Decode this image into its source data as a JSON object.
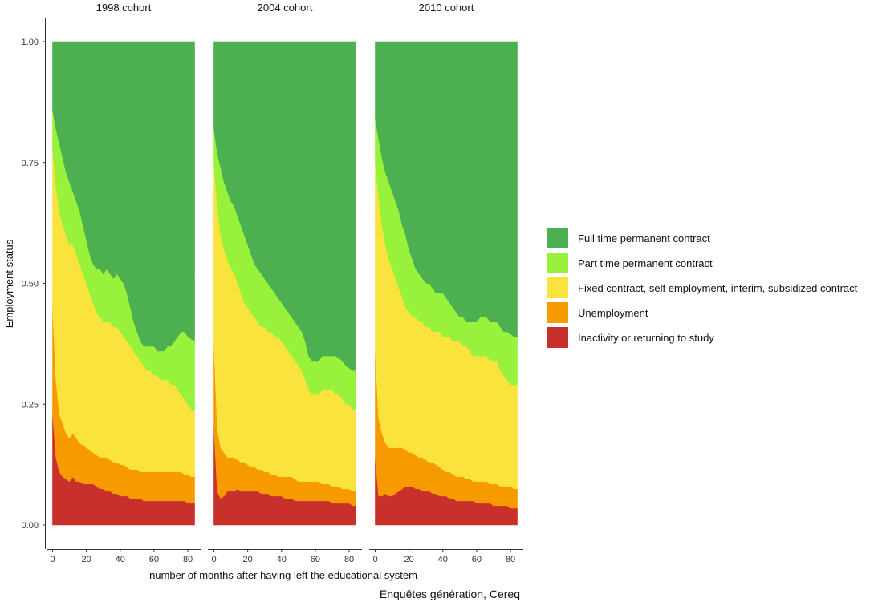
{
  "chart_data": {
    "type": "area",
    "stacked": true,
    "normalized": true,
    "ylabel": "Employment status",
    "xlabel": "number of months after having left the educational system",
    "caption": "Enquêtes génération, Cereq",
    "ylim": [
      0,
      1
    ],
    "xlim": [
      0,
      84
    ],
    "y_ticks": [
      "0.00",
      "0.25",
      "0.50",
      "0.75",
      "1.00"
    ],
    "y_tick_values": [
      0,
      0.25,
      0.5,
      0.75,
      1.0
    ],
    "x_ticks": [
      "0",
      "20",
      "40",
      "60",
      "80"
    ],
    "x_tick_values": [
      0,
      20,
      40,
      60,
      80
    ],
    "legend_position": "right",
    "grid": false,
    "x": [
      0,
      2,
      4,
      6,
      8,
      10,
      12,
      14,
      16,
      18,
      20,
      22,
      24,
      26,
      28,
      30,
      32,
      34,
      36,
      38,
      40,
      42,
      44,
      46,
      48,
      50,
      52,
      54,
      56,
      58,
      60,
      62,
      64,
      66,
      68,
      70,
      72,
      74,
      76,
      78,
      80,
      82,
      84
    ],
    "series": [
      {
        "name": "Inactivity or returning to study",
        "color": "#c8302b"
      },
      {
        "name": "Unemployment",
        "color": "#f79a00"
      },
      {
        "name": "Fixed contract, self employment, interim, subsidized contract",
        "color": "#fbe33d"
      },
      {
        "name": "Part time permanent contract",
        "color": "#98f23c"
      },
      {
        "name": "Full time permanent contract",
        "color": "#4caf50"
      }
    ],
    "panels": [
      {
        "title": "1998 cohort",
        "cumulative_upper_bounds": {
          "Inactivity or returning to study": [
            0.23,
            0.14,
            0.11,
            0.1,
            0.095,
            0.09,
            0.1,
            0.09,
            0.09,
            0.085,
            0.085,
            0.085,
            0.085,
            0.08,
            0.075,
            0.075,
            0.07,
            0.07,
            0.065,
            0.065,
            0.06,
            0.06,
            0.06,
            0.055,
            0.055,
            0.055,
            0.055,
            0.05,
            0.05,
            0.05,
            0.05,
            0.05,
            0.05,
            0.05,
            0.05,
            0.05,
            0.05,
            0.05,
            0.05,
            0.05,
            0.045,
            0.045,
            0.045
          ],
          "Unemployment": [
            0.45,
            0.3,
            0.23,
            0.21,
            0.19,
            0.18,
            0.19,
            0.18,
            0.17,
            0.165,
            0.16,
            0.155,
            0.15,
            0.145,
            0.14,
            0.14,
            0.14,
            0.135,
            0.13,
            0.13,
            0.125,
            0.125,
            0.12,
            0.115,
            0.115,
            0.115,
            0.11,
            0.11,
            0.11,
            0.11,
            0.11,
            0.11,
            0.11,
            0.11,
            0.11,
            0.11,
            0.11,
            0.11,
            0.11,
            0.105,
            0.105,
            0.1,
            0.1
          ],
          "Fixed contract, self employment, interim, subsidized contract": [
            0.78,
            0.7,
            0.65,
            0.62,
            0.6,
            0.58,
            0.58,
            0.56,
            0.54,
            0.52,
            0.5,
            0.48,
            0.46,
            0.44,
            0.43,
            0.42,
            0.42,
            0.42,
            0.41,
            0.41,
            0.4,
            0.39,
            0.38,
            0.37,
            0.36,
            0.35,
            0.34,
            0.33,
            0.32,
            0.32,
            0.31,
            0.31,
            0.3,
            0.3,
            0.3,
            0.29,
            0.29,
            0.28,
            0.27,
            0.26,
            0.25,
            0.24,
            0.235
          ],
          "Part time permanent contract": [
            0.86,
            0.82,
            0.79,
            0.76,
            0.73,
            0.71,
            0.69,
            0.67,
            0.65,
            0.62,
            0.59,
            0.56,
            0.54,
            0.53,
            0.53,
            0.52,
            0.53,
            0.52,
            0.51,
            0.52,
            0.51,
            0.5,
            0.48,
            0.45,
            0.42,
            0.4,
            0.38,
            0.37,
            0.37,
            0.37,
            0.37,
            0.36,
            0.36,
            0.36,
            0.37,
            0.37,
            0.38,
            0.39,
            0.4,
            0.4,
            0.39,
            0.385,
            0.38
          ],
          "Full time permanent contract": [
            1,
            1,
            1,
            1,
            1,
            1,
            1,
            1,
            1,
            1,
            1,
            1,
            1,
            1,
            1,
            1,
            1,
            1,
            1,
            1,
            1,
            1,
            1,
            1,
            1,
            1,
            1,
            1,
            1,
            1,
            1,
            1,
            1,
            1,
            1,
            1,
            1,
            1,
            1,
            1,
            1,
            1,
            1
          ]
        }
      },
      {
        "title": "2004 cohort",
        "cumulative_upper_bounds": {
          "Inactivity or returning to study": [
            0.2,
            0.07,
            0.055,
            0.06,
            0.07,
            0.07,
            0.07,
            0.075,
            0.07,
            0.07,
            0.07,
            0.07,
            0.07,
            0.07,
            0.065,
            0.065,
            0.065,
            0.06,
            0.06,
            0.06,
            0.06,
            0.055,
            0.055,
            0.055,
            0.05,
            0.05,
            0.05,
            0.05,
            0.05,
            0.05,
            0.05,
            0.05,
            0.05,
            0.05,
            0.05,
            0.045,
            0.045,
            0.045,
            0.045,
            0.045,
            0.045,
            0.04,
            0.04
          ],
          "Unemployment": [
            0.38,
            0.2,
            0.16,
            0.15,
            0.14,
            0.14,
            0.14,
            0.135,
            0.13,
            0.13,
            0.125,
            0.12,
            0.12,
            0.115,
            0.115,
            0.11,
            0.11,
            0.105,
            0.105,
            0.1,
            0.1,
            0.1,
            0.1,
            0.1,
            0.095,
            0.09,
            0.09,
            0.09,
            0.09,
            0.09,
            0.09,
            0.09,
            0.085,
            0.085,
            0.085,
            0.08,
            0.08,
            0.08,
            0.075,
            0.075,
            0.075,
            0.07,
            0.07
          ],
          "Fixed contract, self employment, interim, subsidized contract": [
            0.75,
            0.66,
            0.6,
            0.57,
            0.55,
            0.53,
            0.52,
            0.5,
            0.48,
            0.46,
            0.45,
            0.44,
            0.43,
            0.42,
            0.41,
            0.41,
            0.4,
            0.4,
            0.39,
            0.39,
            0.38,
            0.37,
            0.36,
            0.35,
            0.34,
            0.33,
            0.32,
            0.3,
            0.28,
            0.27,
            0.27,
            0.27,
            0.28,
            0.28,
            0.28,
            0.28,
            0.27,
            0.27,
            0.26,
            0.25,
            0.25,
            0.24,
            0.24
          ],
          "Part time permanent contract": [
            0.82,
            0.77,
            0.74,
            0.71,
            0.69,
            0.67,
            0.66,
            0.64,
            0.62,
            0.6,
            0.58,
            0.56,
            0.54,
            0.53,
            0.52,
            0.51,
            0.5,
            0.49,
            0.48,
            0.47,
            0.46,
            0.45,
            0.44,
            0.43,
            0.42,
            0.41,
            0.4,
            0.38,
            0.35,
            0.34,
            0.34,
            0.34,
            0.35,
            0.35,
            0.35,
            0.35,
            0.35,
            0.345,
            0.34,
            0.33,
            0.325,
            0.32,
            0.32
          ],
          "Full time permanent contract": [
            1,
            1,
            1,
            1,
            1,
            1,
            1,
            1,
            1,
            1,
            1,
            1,
            1,
            1,
            1,
            1,
            1,
            1,
            1,
            1,
            1,
            1,
            1,
            1,
            1,
            1,
            1,
            1,
            1,
            1,
            1,
            1,
            1,
            1,
            1,
            1,
            1,
            1,
            1,
            1,
            1,
            1,
            1
          ]
        }
      },
      {
        "title": "2010 cohort",
        "cumulative_upper_bounds": {
          "Inactivity or returning to study": [
            0.14,
            0.06,
            0.06,
            0.065,
            0.06,
            0.06,
            0.065,
            0.07,
            0.075,
            0.08,
            0.08,
            0.08,
            0.075,
            0.075,
            0.07,
            0.07,
            0.07,
            0.065,
            0.065,
            0.06,
            0.06,
            0.06,
            0.055,
            0.055,
            0.05,
            0.05,
            0.05,
            0.05,
            0.05,
            0.05,
            0.045,
            0.045,
            0.045,
            0.045,
            0.045,
            0.04,
            0.04,
            0.04,
            0.04,
            0.04,
            0.035,
            0.035,
            0.035
          ],
          "Unemployment": [
            0.36,
            0.22,
            0.19,
            0.17,
            0.16,
            0.16,
            0.16,
            0.16,
            0.16,
            0.155,
            0.15,
            0.15,
            0.145,
            0.14,
            0.14,
            0.135,
            0.13,
            0.13,
            0.125,
            0.12,
            0.115,
            0.11,
            0.11,
            0.105,
            0.1,
            0.1,
            0.1,
            0.095,
            0.095,
            0.09,
            0.09,
            0.09,
            0.09,
            0.09,
            0.085,
            0.085,
            0.085,
            0.08,
            0.08,
            0.08,
            0.08,
            0.075,
            0.075
          ],
          "Fixed contract, self employment, interim, subsidized contract": [
            0.75,
            0.68,
            0.62,
            0.58,
            0.55,
            0.53,
            0.51,
            0.49,
            0.47,
            0.45,
            0.44,
            0.43,
            0.43,
            0.42,
            0.42,
            0.41,
            0.41,
            0.4,
            0.4,
            0.4,
            0.39,
            0.39,
            0.39,
            0.38,
            0.38,
            0.38,
            0.37,
            0.37,
            0.36,
            0.35,
            0.35,
            0.35,
            0.35,
            0.35,
            0.34,
            0.34,
            0.34,
            0.32,
            0.31,
            0.3,
            0.29,
            0.29,
            0.29
          ],
          "Part time permanent contract": [
            0.84,
            0.8,
            0.76,
            0.73,
            0.71,
            0.69,
            0.67,
            0.65,
            0.62,
            0.6,
            0.57,
            0.55,
            0.53,
            0.52,
            0.51,
            0.5,
            0.5,
            0.49,
            0.48,
            0.48,
            0.48,
            0.47,
            0.46,
            0.45,
            0.44,
            0.43,
            0.43,
            0.42,
            0.42,
            0.42,
            0.42,
            0.43,
            0.43,
            0.43,
            0.42,
            0.42,
            0.42,
            0.41,
            0.4,
            0.4,
            0.395,
            0.39,
            0.39
          ],
          "Full time permanent contract": [
            1,
            1,
            1,
            1,
            1,
            1,
            1,
            1,
            1,
            1,
            1,
            1,
            1,
            1,
            1,
            1,
            1,
            1,
            1,
            1,
            1,
            1,
            1,
            1,
            1,
            1,
            1,
            1,
            1,
            1,
            1,
            1,
            1,
            1,
            1,
            1,
            1,
            1,
            1,
            1,
            1,
            1,
            1
          ]
        }
      }
    ],
    "legend_order": [
      "Full time permanent contract",
      "Part time permanent contract",
      "Fixed contract, self employment, interim, subsidized contract",
      "Unemployment",
      "Inactivity or returning to study"
    ]
  }
}
